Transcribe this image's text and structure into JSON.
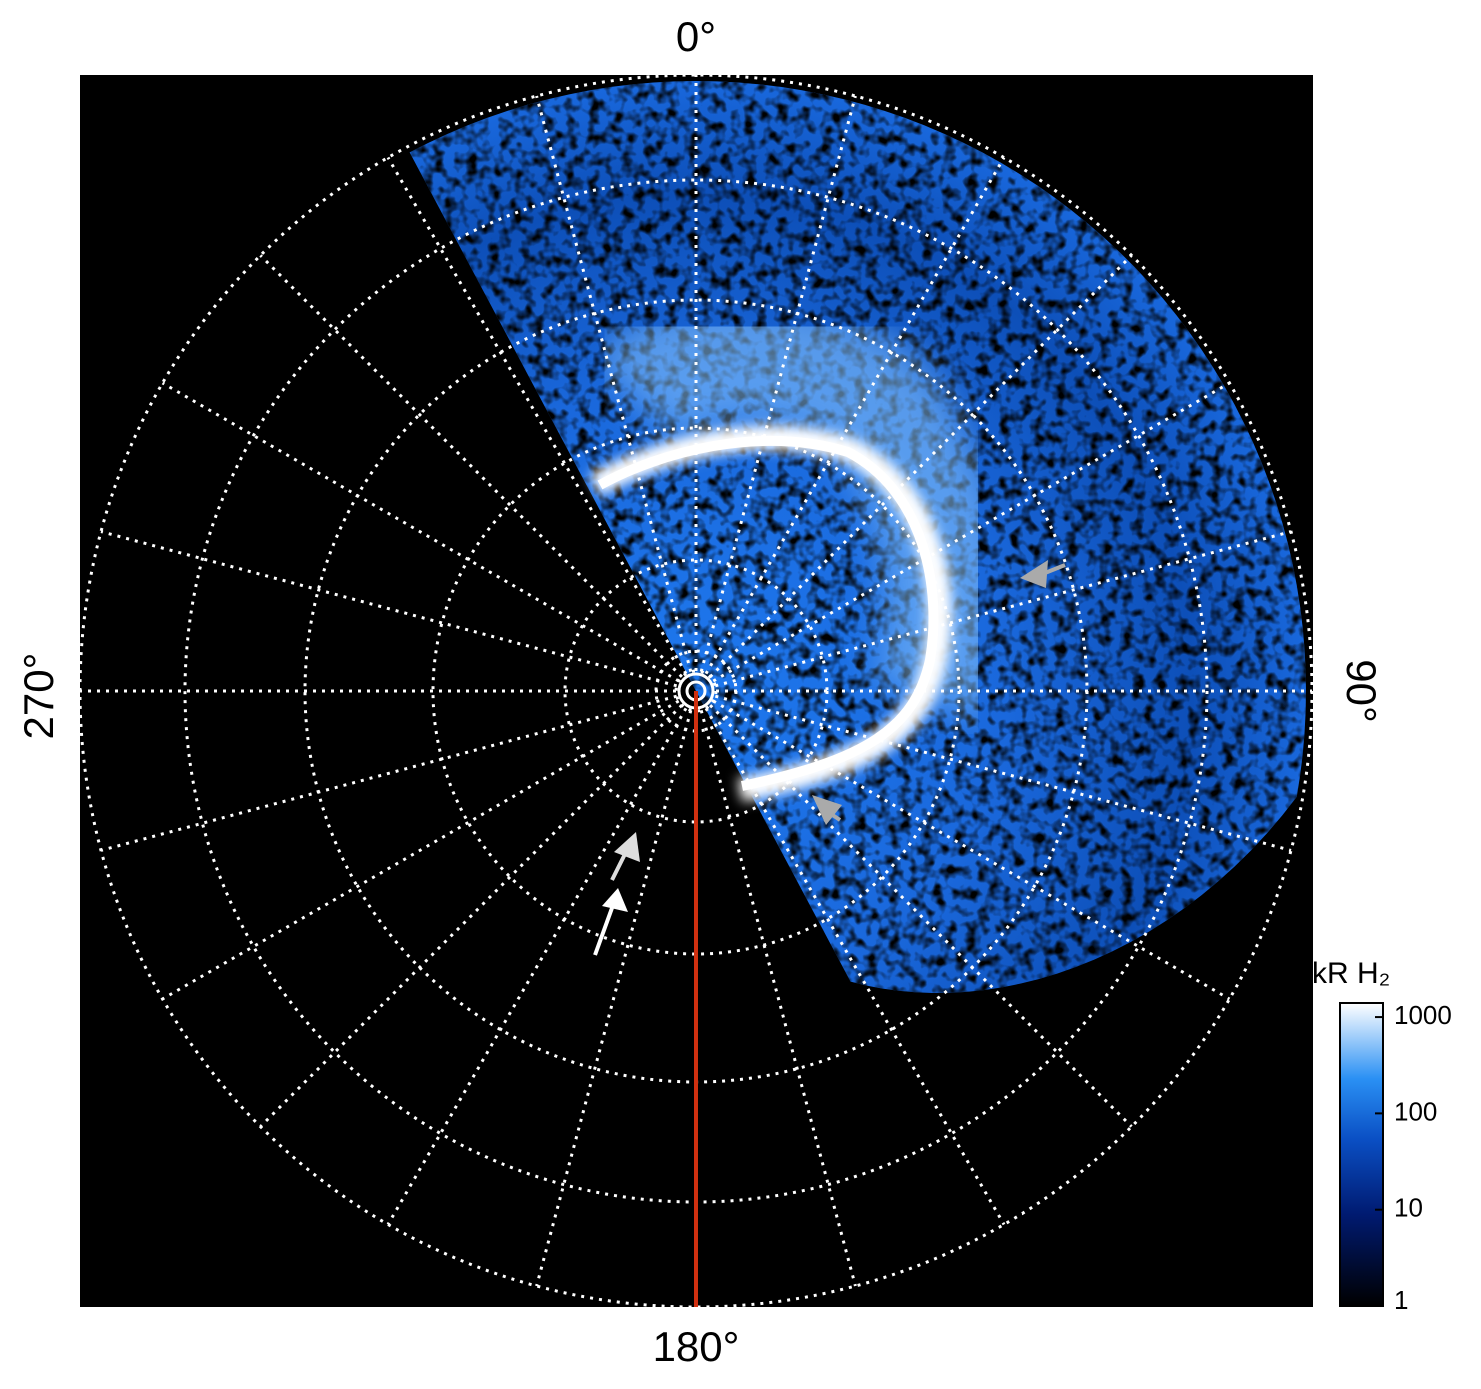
{
  "figure": {
    "angle_labels": {
      "top": "0°",
      "right": "90°",
      "bottom": "180°",
      "left": "270°"
    },
    "colorbar": {
      "title": "kR H₂",
      "log": true,
      "lim": [
        1,
        1400
      ],
      "ticks": [
        1,
        10,
        100,
        1000
      ]
    }
  }
}
